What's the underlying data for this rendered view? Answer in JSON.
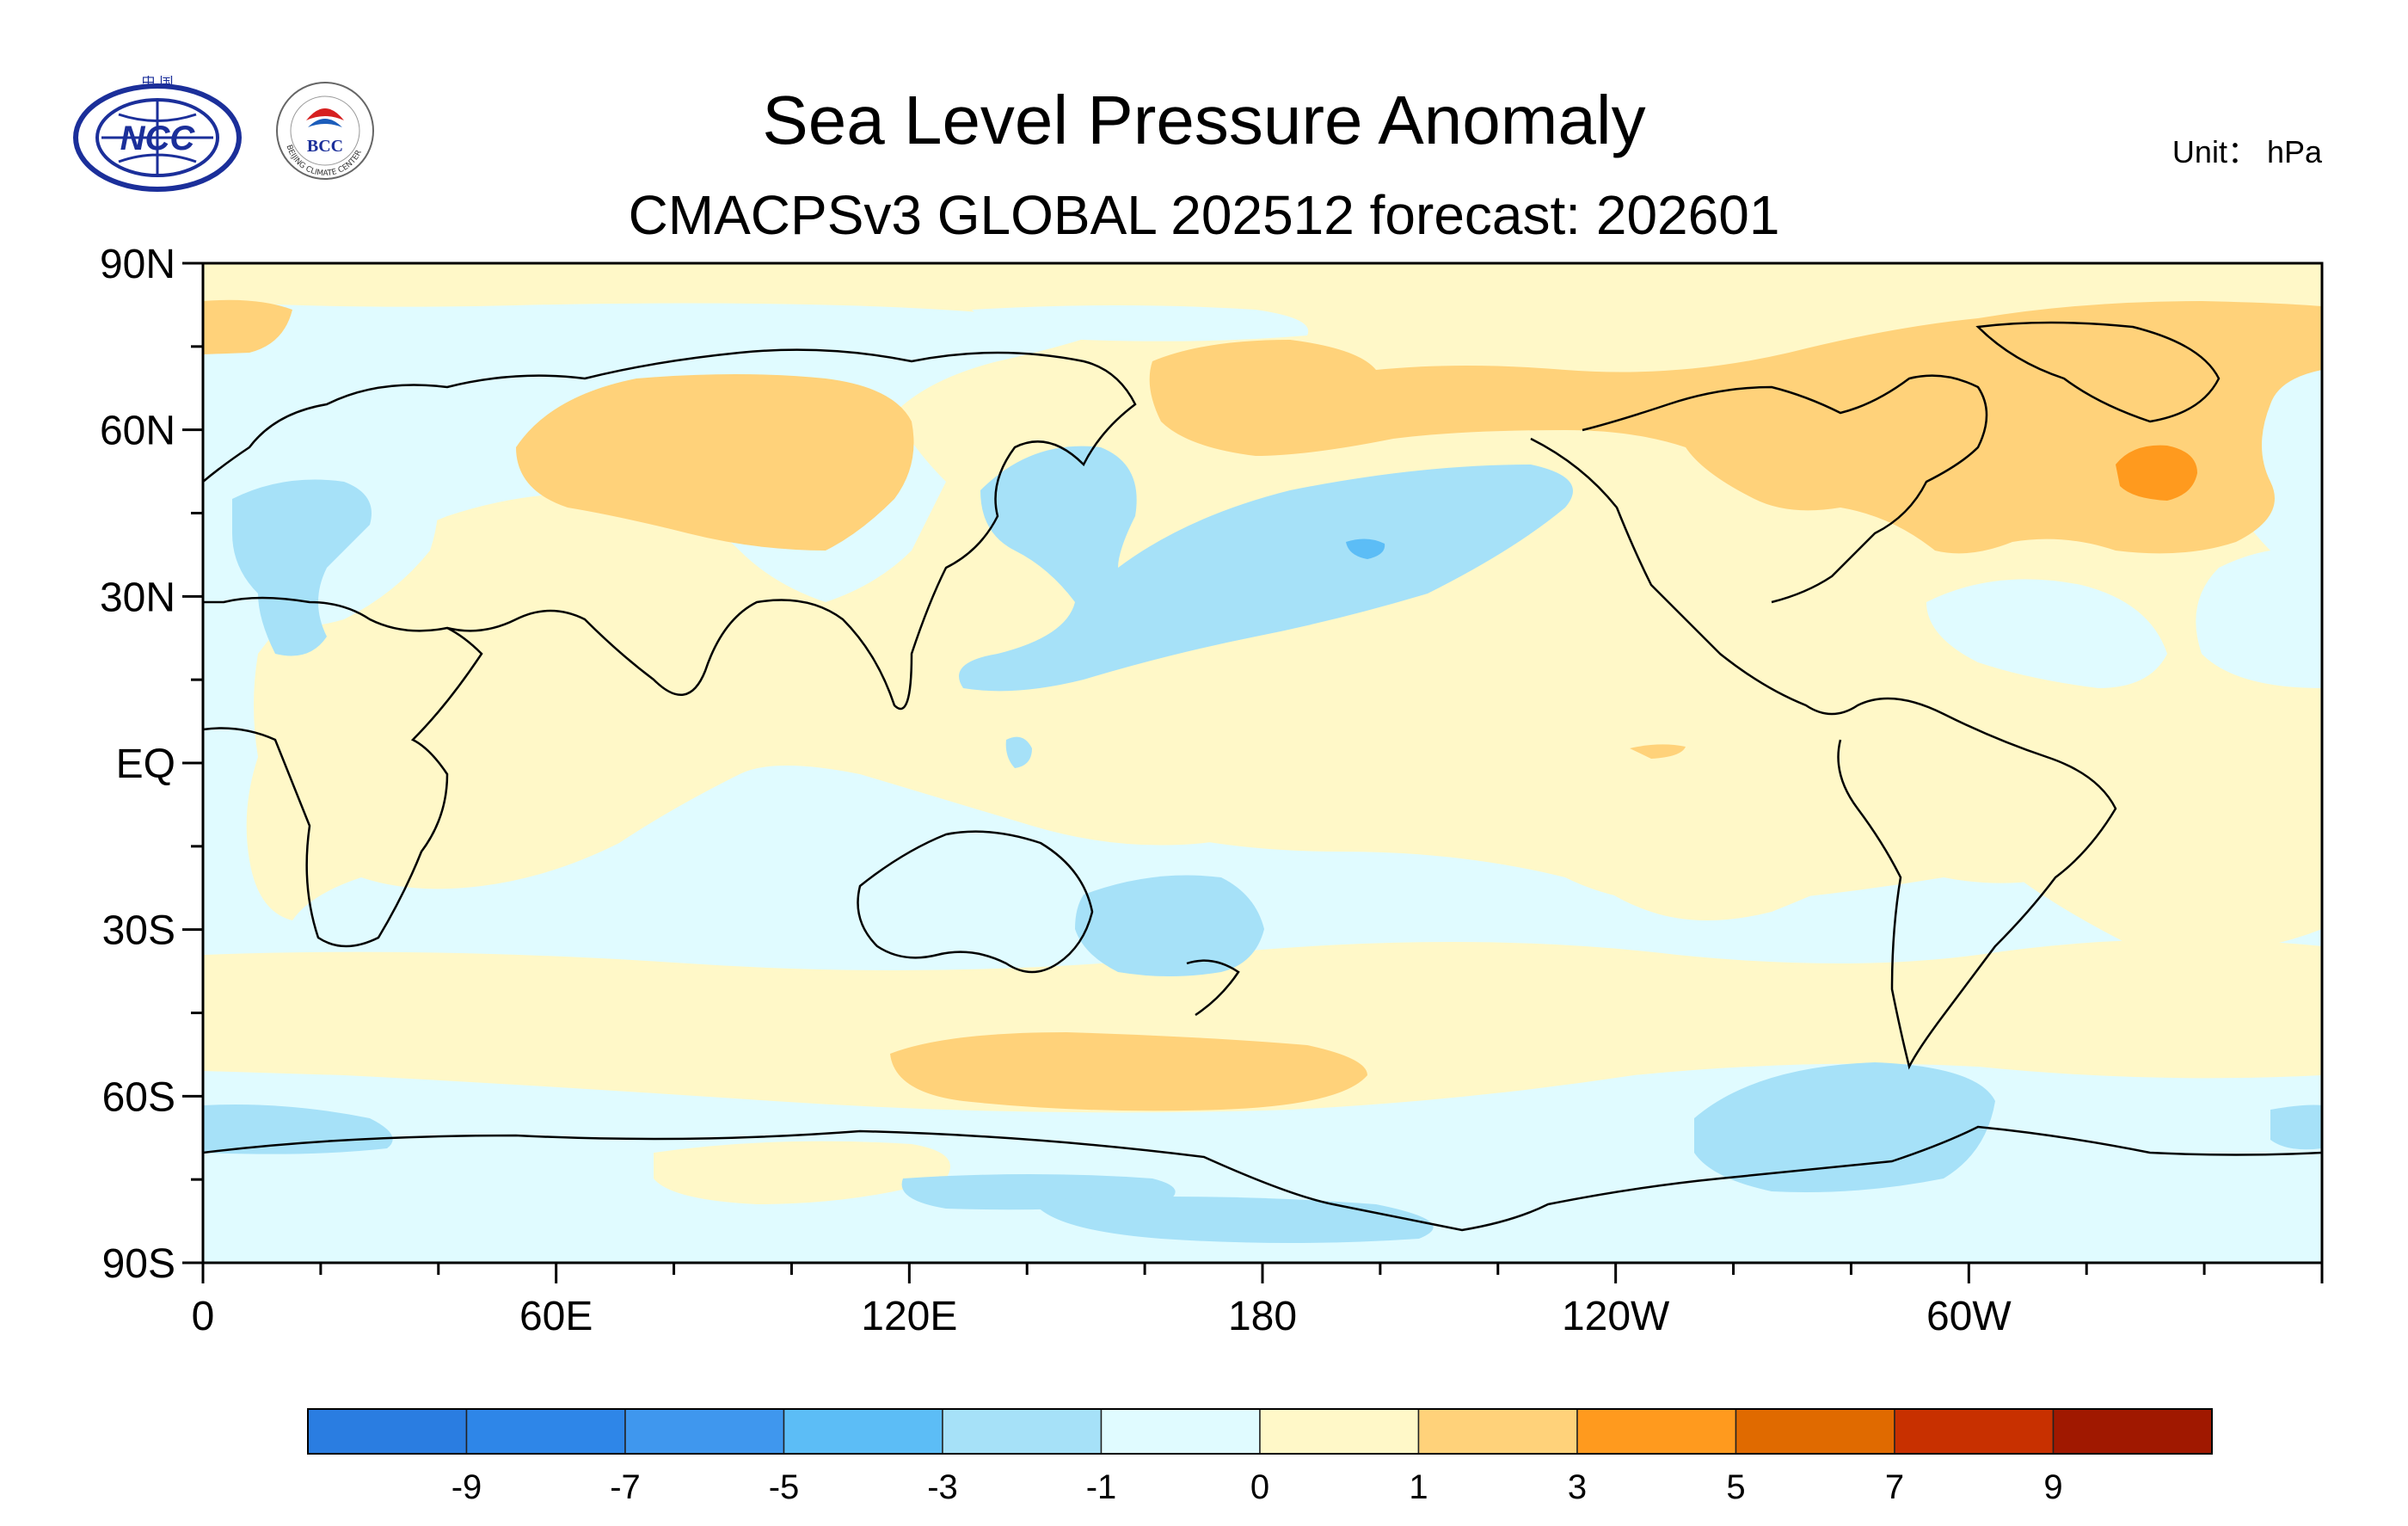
{
  "header": {
    "title": "Sea Level Pressure Anomaly",
    "subtitle": "CMACPSv3 GLOBAL 202512 forecast: 202601",
    "unit": "Unit： hPa"
  },
  "logos": {
    "ncc": {
      "text": "NCC",
      "top_text": "中 国"
    },
    "bcc": {
      "text": "BCC",
      "ring_text": "BEIJING CLIMATE CENTER"
    }
  },
  "map": {
    "lat_labels": [
      "90N",
      "60N",
      "30N",
      "EQ",
      "30S",
      "60S",
      "90S"
    ],
    "lon_labels": [
      "0",
      "60E",
      "120E",
      "180",
      "120W",
      "60W"
    ]
  },
  "colorbar": {
    "colors": [
      "#2a7de1",
      "#2e86e8",
      "#3f97ee",
      "#5cbdf6",
      "#a6e1f8",
      "#e0fbff",
      "#fff8c8",
      "#ffd27a",
      "#ff9a1e",
      "#e06a00",
      "#c83000",
      "#a01800"
    ],
    "labels": [
      "-9",
      "-7",
      "-5",
      "-3",
      "-1",
      "0",
      "1",
      "3",
      "5",
      "7",
      "9"
    ]
  },
  "palette": {
    "neg1": "#e0fbff",
    "neg3": "#a6e1f8",
    "neg5": "#5cbdf6",
    "pos1": "#fff8c8",
    "pos3": "#ffd27a",
    "pos5": "#ff9a1e"
  }
}
